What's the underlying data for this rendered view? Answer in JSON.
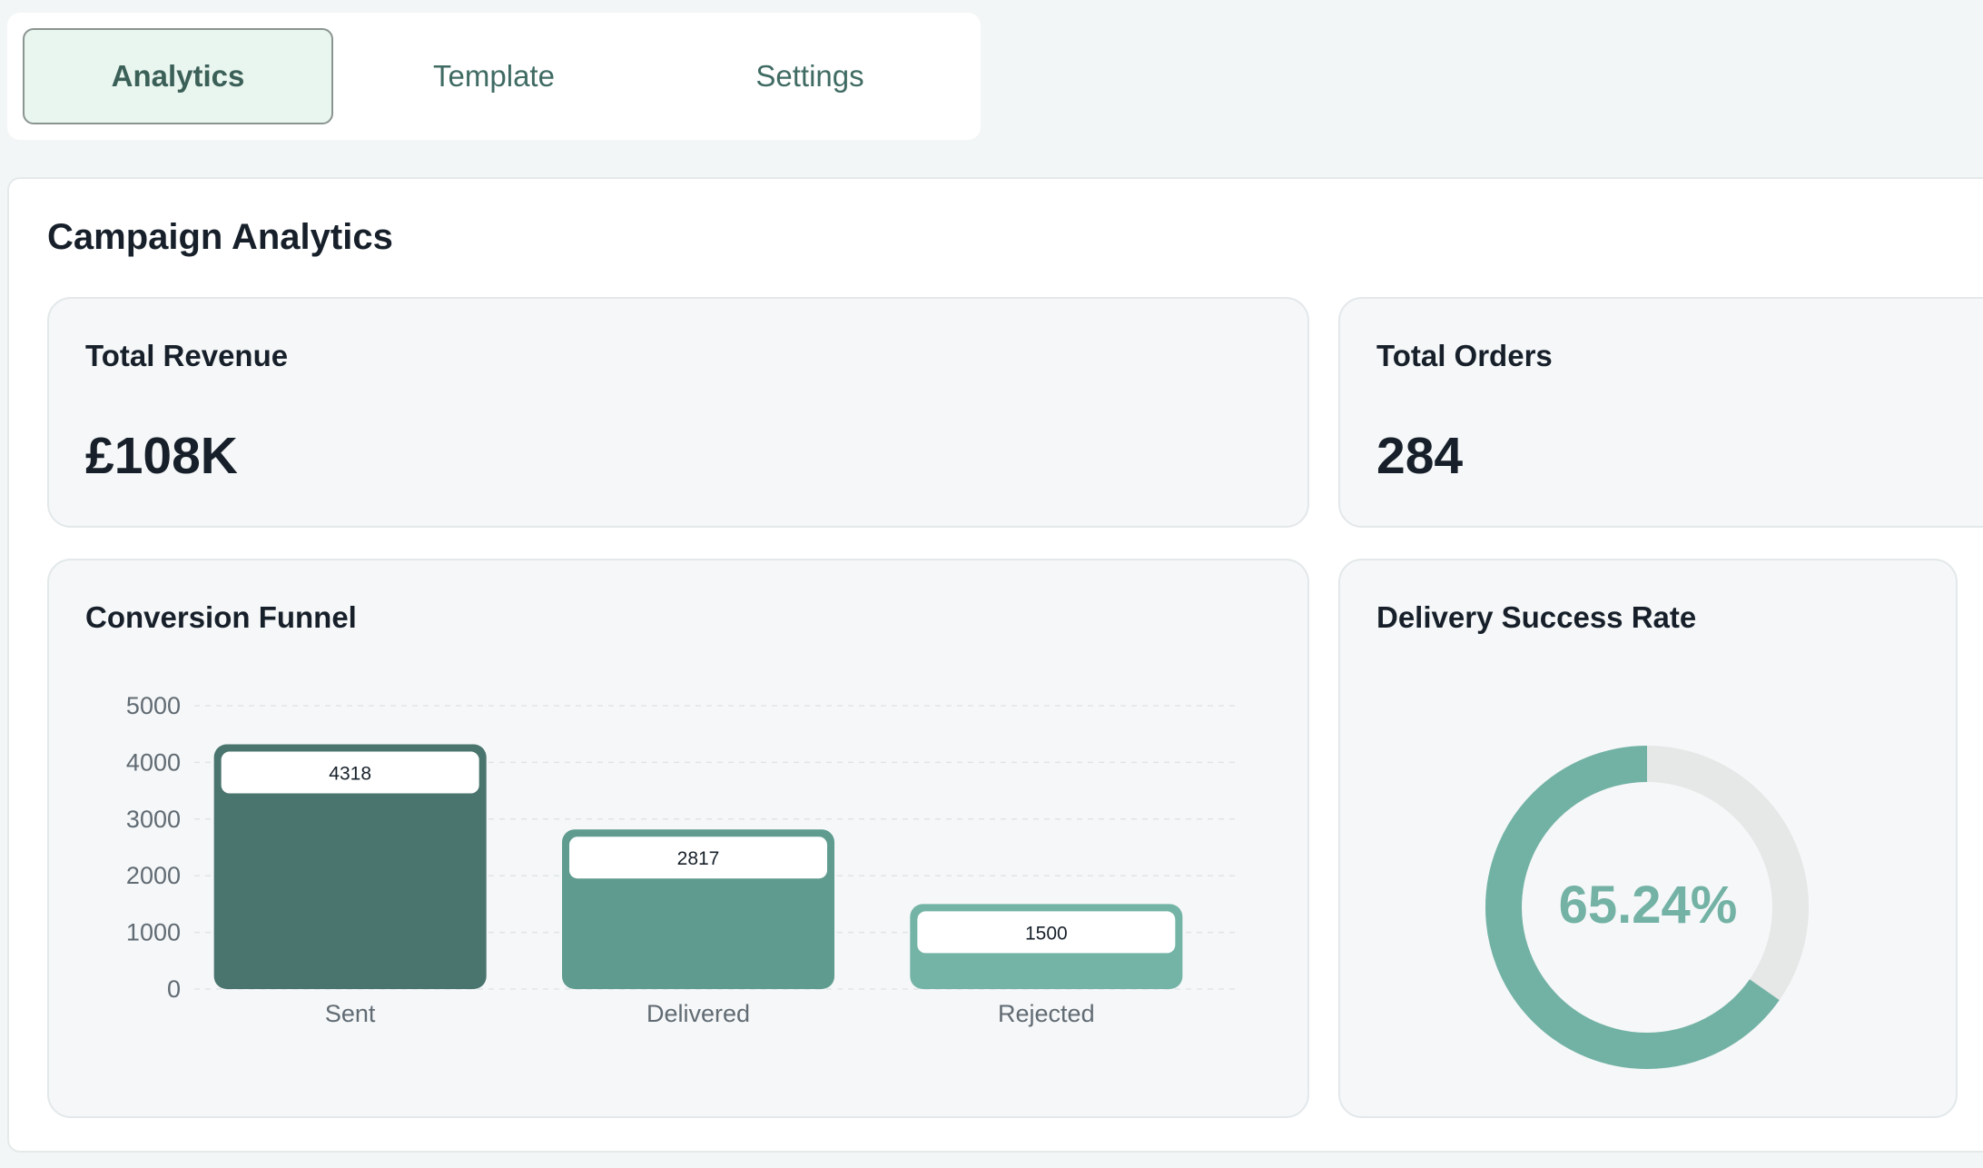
{
  "tabs": [
    {
      "label": "Analytics",
      "active": true
    },
    {
      "label": "Template",
      "active": false
    },
    {
      "label": "Settings",
      "active": false
    }
  ],
  "page_title": "Campaign Analytics",
  "revenue": {
    "title": "Total Revenue",
    "value": "£108K"
  },
  "orders": {
    "title": "Total Orders",
    "value": "284"
  },
  "funnel": {
    "title": "Conversion Funnel"
  },
  "delivery": {
    "title": "Delivery Success Rate",
    "value_label": "65.24%",
    "rate": 0.6524
  },
  "colors": {
    "sent": "#4a746e",
    "delivered": "#5f9c8f",
    "rejected": "#73b4a6",
    "donut_fill": "#72b2a5",
    "donut_track": "#e6e7e7"
  },
  "chart_data": {
    "type": "bar",
    "categories": [
      "Sent",
      "Delivered",
      "Rejected"
    ],
    "values": [
      4318,
      2817,
      1500
    ],
    "title": "Conversion Funnel",
    "xlabel": "",
    "ylabel": "",
    "ylim": [
      0,
      5000
    ],
    "yticks": [
      0,
      1000,
      2000,
      3000,
      4000,
      5000
    ],
    "grid": true
  }
}
